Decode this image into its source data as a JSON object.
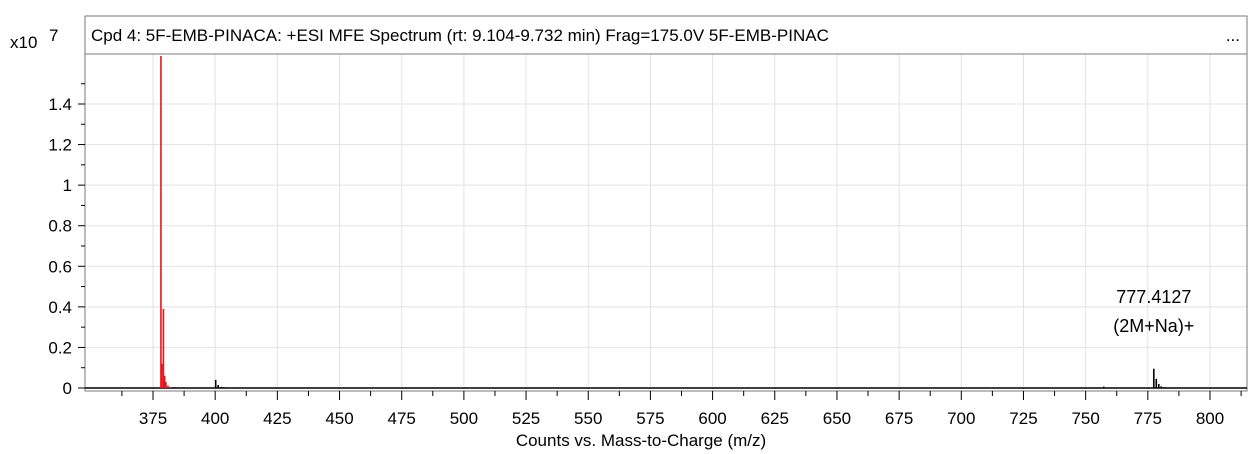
{
  "chart_data": {
    "type": "line",
    "title": "Cpd 4: 5F-EMB-PINACA: +ESI MFE Spectrum (rt: 9.104-9.732 min) Frag=175.0V 5F-EMB-PINAC",
    "title_overflow": "...",
    "xlabel": "Counts vs. Mass-to-Charge (m/z)",
    "ylabel": "",
    "y_multiplier": "x10",
    "y_exponent": "7",
    "xlim": [
      355,
      815
    ],
    "ylim": [
      0,
      1.65
    ],
    "x_ticks": [
      375,
      400,
      425,
      450,
      475,
      500,
      525,
      550,
      575,
      600,
      625,
      650,
      675,
      700,
      725,
      750,
      775,
      800
    ],
    "y_ticks": [
      {
        "value": 0,
        "label": "0"
      },
      {
        "value": 0.2,
        "label": "0.2"
      },
      {
        "value": 0.4,
        "label": "0.4"
      },
      {
        "value": 0.6,
        "label": "0.6"
      },
      {
        "value": 0.8,
        "label": "0.8"
      },
      {
        "value": 1,
        "label": "1"
      },
      {
        "value": 1.2,
        "label": "1.2"
      },
      {
        "value": 1.4,
        "label": "1.4"
      }
    ],
    "grid": true,
    "series": [
      {
        "color": "#e8141c",
        "peaks": [
          [
            378.2,
            1.65
          ],
          [
            378.6,
            0.12
          ],
          [
            379.2,
            0.39
          ],
          [
            379.7,
            0.06
          ],
          [
            380.2,
            0.03
          ],
          [
            381.0,
            0.012
          ],
          [
            382.0,
            0.005
          ]
        ]
      },
      {
        "color": "#000000",
        "peaks": [
          [
            383.5,
            0.004
          ],
          [
            385,
            0.003
          ],
          [
            400.2,
            0.04
          ],
          [
            401.2,
            0.015
          ],
          [
            402.5,
            0.006
          ],
          [
            403.5,
            0.004
          ],
          [
            757.3,
            0.007
          ],
          [
            777.4,
            0.095
          ],
          [
            778.4,
            0.045
          ],
          [
            779.4,
            0.02
          ],
          [
            780.4,
            0.008
          ],
          [
            781.5,
            0.004
          ],
          [
            782.5,
            0.003
          ]
        ]
      }
    ],
    "annotations": [
      {
        "x": 777.4127,
        "lines": [
          "777.4127",
          "(2M+Na)+"
        ]
      }
    ]
  }
}
